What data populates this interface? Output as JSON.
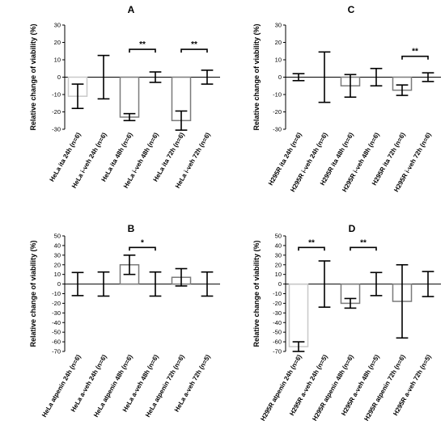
{
  "chart_data": [
    {
      "panel": "A",
      "type": "bar",
      "ylabel": "Relative change of viability (%)",
      "ylim": [
        -30,
        30
      ],
      "yticks": [
        -30,
        -20,
        -10,
        0,
        10,
        20,
        30
      ],
      "categories": [
        "HeLa ita 24h (n=6)",
        "HeLa i-veh 24h (n=6)",
        "HeLa ita 48h (n=6)",
        "HeLa i-veh 48h (n=6)",
        "HeLa ita 72h (n=6)",
        "HeLa i-veh 72h (n=6)"
      ],
      "values": [
        -11,
        0,
        -23,
        0,
        -25,
        0
      ],
      "errors": [
        7,
        12.5,
        2,
        3,
        5.5,
        4
      ],
      "bar_colors": [
        "#c9c9c9",
        "#000000",
        "#7a7a7a",
        "#000000",
        "#7a7a7a",
        "#000000"
      ],
      "significance": [
        {
          "from": 2,
          "to": 3,
          "label": "**",
          "y": 16
        },
        {
          "from": 4,
          "to": 5,
          "label": "**",
          "y": 16
        }
      ]
    },
    {
      "panel": "B",
      "type": "bar",
      "ylabel": "Relative change of viability (%)",
      "ylim": [
        -70,
        50
      ],
      "yticks": [
        -70,
        -60,
        -50,
        -40,
        -30,
        -20,
        -10,
        0,
        10,
        20,
        30,
        40,
        50
      ],
      "categories": [
        "HeLa atpenin 24h (n=6)",
        "HeLa a-veh 24h (n=6)",
        "HeLa atpenin 48h (n=6)",
        "HeLa a-veh 48h (n=6)",
        "HeLa atpenin 72h (n=6)",
        "HeLa a-veh 72h (n=5)"
      ],
      "values": [
        0,
        0,
        20,
        0,
        7,
        0
      ],
      "errors": [
        12,
        12.5,
        10,
        12.5,
        9,
        12.5
      ],
      "bar_colors": [
        "#c9c9c9",
        "#000000",
        "#7a7a7a",
        "#000000",
        "#7a7a7a",
        "#000000"
      ],
      "significance": [
        {
          "from": 2,
          "to": 3,
          "label": "*",
          "y": 38
        }
      ]
    },
    {
      "panel": "C",
      "type": "bar",
      "ylabel": "Relative change of viability (%)",
      "ylim": [
        -30,
        30
      ],
      "yticks": [
        -30,
        -20,
        -10,
        0,
        10,
        20,
        30
      ],
      "categories": [
        "H295R ita 24h (n=6)",
        "H295R i-veh 24h (n=6)",
        "H295R ita 48h (n=6)",
        "H295R i-veh 48h (n=6)",
        "H295R ita 72h (n=6)",
        "H295R i-veh 72h (n=6)"
      ],
      "values": [
        0,
        0,
        -5,
        0,
        -7.5,
        0
      ],
      "errors": [
        2,
        14.5,
        6.5,
        5,
        3,
        2.5
      ],
      "bar_colors": [
        "#c9c9c9",
        "#000000",
        "#7a7a7a",
        "#000000",
        "#7a7a7a",
        "#000000"
      ],
      "significance": [
        {
          "from": 4,
          "to": 5,
          "label": "**",
          "y": 12
        }
      ]
    },
    {
      "panel": "D",
      "type": "bar",
      "ylabel": "Relative change of viability (%)",
      "ylim": [
        -70,
        50
      ],
      "yticks": [
        -70,
        -60,
        -50,
        -40,
        -30,
        -20,
        -10,
        0,
        10,
        20,
        30,
        40,
        50
      ],
      "categories": [
        "H295R atpenin 24h (n=6)",
        "H295R a-veh 24h (n=5)",
        "H295R atpenin 48h (n=6)",
        "H295R a-veh 48h (n=5)",
        "H295R atpenin 72h (n=6)",
        "H295R a-veh 72h (n=5)"
      ],
      "values": [
        -65,
        0,
        -20,
        0,
        -18,
        0
      ],
      "errors": [
        5,
        24,
        5,
        12,
        38,
        13
      ],
      "bar_colors": [
        "#c9c9c9",
        "#000000",
        "#7a7a7a",
        "#000000",
        "#7a7a7a",
        "#000000"
      ],
      "significance": [
        {
          "from": 0,
          "to": 1,
          "label": "**",
          "y": 38
        },
        {
          "from": 2,
          "to": 3,
          "label": "**",
          "y": 38
        }
      ]
    }
  ]
}
